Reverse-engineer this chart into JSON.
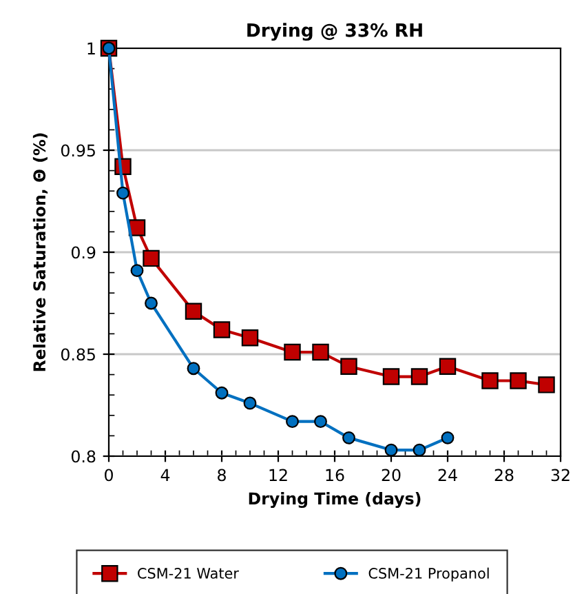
{
  "chart_data": {
    "type": "line",
    "title": "Drying @ 33% RH",
    "xlabel": "Drying Time (days)",
    "ylabel": "Relative Saturation, Θ (%)",
    "xlim": [
      0,
      32
    ],
    "xticks": [
      0,
      4,
      8,
      12,
      16,
      20,
      24,
      28,
      32
    ],
    "ylim": [
      0.8,
      1
    ],
    "yticks": [
      0.8,
      0.85,
      0.9,
      0.95,
      1
    ],
    "grid": "y",
    "legend": "bottom",
    "line_style": "solid",
    "series": [
      {
        "name": "CSM-21 Water",
        "color": "#c00000",
        "marker": "square",
        "x": [
          0,
          1,
          2,
          3,
          6,
          8,
          10,
          13,
          15,
          17,
          20,
          22,
          24,
          27,
          29,
          31
        ],
        "values": [
          1.0,
          0.942,
          0.912,
          0.897,
          0.871,
          0.862,
          0.858,
          0.851,
          0.851,
          0.844,
          0.839,
          0.839,
          0.844,
          0.837,
          0.837,
          0.835
        ]
      },
      {
        "name": "CSM-21 Propanol",
        "color": "#0070c0",
        "marker": "circle",
        "x": [
          0,
          1,
          2,
          3,
          6,
          8,
          10,
          13,
          15,
          17,
          20,
          22,
          24
        ],
        "values": [
          1.0,
          0.929,
          0.891,
          0.875,
          0.843,
          0.831,
          0.826,
          0.817,
          0.817,
          0.809,
          0.803,
          0.803,
          0.809
        ]
      }
    ]
  }
}
